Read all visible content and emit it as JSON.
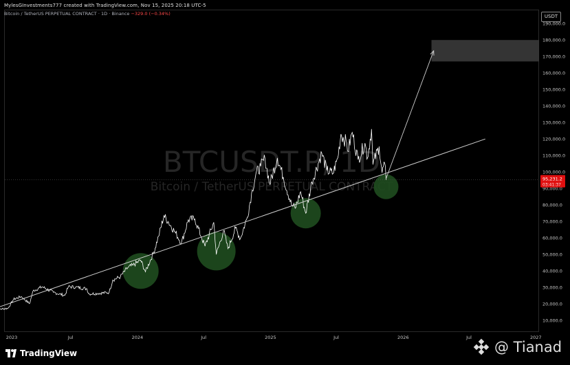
{
  "header": {
    "creator_line": "MylesGInvestments777 created with TradingView.com, Nov 15, 2025 20:18 UTC-5",
    "symbol_line": "Bitcoin / TetherUS PERPETUAL CONTRACT · 1D · Binance",
    "change": "−329.0 (−0.34%)"
  },
  "currency_button": "USDT",
  "brand": {
    "name": "TradingView"
  },
  "overlay_watermark": "@ Tianad",
  "colors": {
    "background": "#000000",
    "price_line": "#ffffff",
    "trendline": "#cfcfcf",
    "target_zone": "#3a3a3a",
    "support_circles": "#1f4d1f",
    "price_tag": "#e01010"
  },
  "chart_data": {
    "type": "line",
    "title": "BTCUSDT.P, 1D",
    "subtitle": "Bitcoin / TetherUS PERPETUAL CONTRACT",
    "xlabel": "",
    "ylabel": "",
    "x_ticks": [
      "2023",
      "Jul",
      "2024",
      "Jul",
      "2025",
      "Jul",
      "2026",
      "Jul",
      "2027"
    ],
    "xlim": [
      "2023-01-01",
      "2027-01-10"
    ],
    "ylim": [
      3000,
      198000
    ],
    "y_ticks": [
      10000,
      20000,
      30000,
      40000,
      50000,
      60000,
      70000,
      80000,
      90000,
      100000,
      110000,
      120000,
      130000,
      140000,
      150000,
      160000,
      170000,
      180000,
      190000
    ],
    "y_tick_labels": [
      "10,000.0",
      "20,000.0",
      "30,000.0",
      "40,000.0",
      "50,000.0",
      "60,000.0",
      "70,000.0",
      "80,000.0",
      "90,000.0",
      "100,000.0",
      "110,000.0",
      "120,000.0",
      "130,000.0",
      "140,000.0",
      "150,000.0",
      "160,000.0",
      "170,000.0",
      "180,000.0",
      "190,000.0"
    ],
    "last_price": "95,231.2",
    "last_price_value": 95231.2,
    "countdown": "03:41:37",
    "series": [
      {
        "values": [
          [
            "2022-12-01",
            16800
          ],
          [
            "2022-12-20",
            16900
          ],
          [
            "2023-01-10",
            17400
          ],
          [
            "2023-01-25",
            22800
          ],
          [
            "2023-02-15",
            24500
          ],
          [
            "2023-03-10",
            20200
          ],
          [
            "2023-03-20",
            28000
          ],
          [
            "2023-04-14",
            30400
          ],
          [
            "2023-05-15",
            27000
          ],
          [
            "2023-06-15",
            25200
          ],
          [
            "2023-06-25",
            30500
          ],
          [
            "2023-07-15",
            30200
          ],
          [
            "2023-08-15",
            29200
          ],
          [
            "2023-08-20",
            26100
          ],
          [
            "2023-09-15",
            26400
          ],
          [
            "2023-10-15",
            27000
          ],
          [
            "2023-10-25",
            34500
          ],
          [
            "2023-11-15",
            36500
          ],
          [
            "2023-12-05",
            42000
          ],
          [
            "2023-12-20",
            43500
          ],
          [
            "2024-01-10",
            46500
          ],
          [
            "2024-01-23",
            39500
          ],
          [
            "2024-02-15",
            51500
          ],
          [
            "2024-02-28",
            61000
          ],
          [
            "2024-03-14",
            73500
          ],
          [
            "2024-03-25",
            70000
          ],
          [
            "2024-04-15",
            63000
          ],
          [
            "2024-05-01",
            57000
          ],
          [
            "2024-05-20",
            71000
          ],
          [
            "2024-06-07",
            71500
          ],
          [
            "2024-06-25",
            60500
          ],
          [
            "2024-07-05",
            55000
          ],
          [
            "2024-07-29",
            69500
          ],
          [
            "2024-08-05",
            50000
          ],
          [
            "2024-08-25",
            64500
          ],
          [
            "2024-09-06",
            53500
          ],
          [
            "2024-09-27",
            66000
          ],
          [
            "2024-10-10",
            59500
          ],
          [
            "2024-10-29",
            72500
          ],
          [
            "2024-11-12",
            89000
          ],
          [
            "2024-11-22",
            99000
          ],
          [
            "2024-12-05",
            103500
          ],
          [
            "2024-12-17",
            108000
          ],
          [
            "2024-12-30",
            92500
          ],
          [
            "2025-01-20",
            108500
          ],
          [
            "2025-02-05",
            97000
          ],
          [
            "2025-02-28",
            80000
          ],
          [
            "2025-03-10",
            78000
          ],
          [
            "2025-03-25",
            88000
          ],
          [
            "2025-04-08",
            75000
          ],
          [
            "2025-04-25",
            94000
          ],
          [
            "2025-05-22",
            111500
          ],
          [
            "2025-06-05",
            101000
          ],
          [
            "2025-06-22",
            99000
          ],
          [
            "2025-07-05",
            108500
          ],
          [
            "2025-07-14",
            123000
          ],
          [
            "2025-07-30",
            117500
          ],
          [
            "2025-08-02",
            112500
          ],
          [
            "2025-08-14",
            124000
          ],
          [
            "2025-08-30",
            107500
          ],
          [
            "2025-09-18",
            117500
          ],
          [
            "2025-09-25",
            108500
          ],
          [
            "2025-10-06",
            126000
          ],
          [
            "2025-10-10",
            104500
          ],
          [
            "2025-10-27",
            115500
          ],
          [
            "2025-11-04",
            99500
          ],
          [
            "2025-11-11",
            105500
          ],
          [
            "2025-11-15",
            95231
          ]
        ]
      }
    ],
    "annotations": {
      "trendline": {
        "from": [
          "2022-12-01",
          17000
        ],
        "to": [
          "2026-08-15",
          120000
        ]
      },
      "target_zone": {
        "from_date": "2026-03-20",
        "to_date": "2027-01-10",
        "low": 167000,
        "high": 180000
      },
      "arrow": {
        "from": [
          "2025-11-15",
          96000
        ],
        "to": [
          "2026-03-26",
          173500
        ]
      },
      "support_circles": [
        {
          "date": "2024-01-10",
          "price": 40000
        },
        {
          "date": "2024-08-05",
          "price": 52000
        },
        {
          "date": "2025-04-08",
          "price": 75000
        },
        {
          "date": "2025-11-15",
          "price": 91000
        }
      ]
    }
  }
}
